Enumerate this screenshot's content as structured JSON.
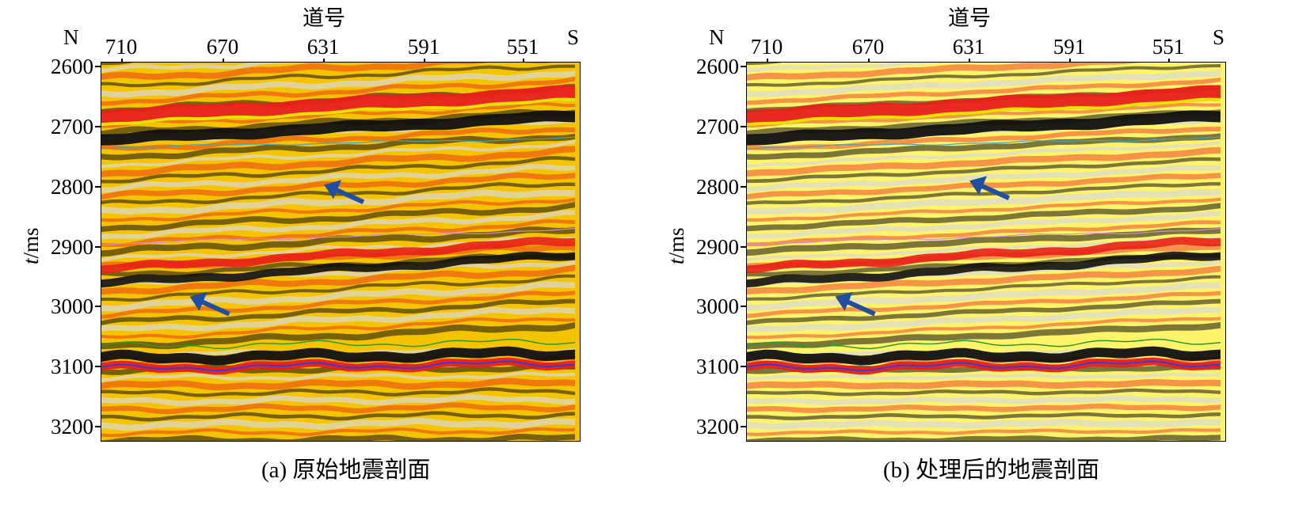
{
  "panels": [
    {
      "id": "a",
      "x_title": "道号",
      "left_dir": "N",
      "right_dir": "S",
      "x_ticks": [
        "710",
        "670",
        "631",
        "591",
        "551"
      ],
      "y_ticks": [
        "2600",
        "2700",
        "2800",
        "2900",
        "3000",
        "3100",
        "3200"
      ],
      "y_label_italic": "t",
      "y_label_rest": "/ms",
      "caption": "(a) 原始地震剖面",
      "arrow_count": 2
    },
    {
      "id": "b",
      "x_title": "道号",
      "left_dir": "N",
      "right_dir": "S",
      "x_ticks": [
        "710",
        "670",
        "631",
        "591",
        "551"
      ],
      "y_ticks": [
        "2600",
        "2700",
        "2800",
        "2900",
        "3000",
        "3100",
        "3200"
      ],
      "y_label_italic": "t",
      "y_label_rest": "/ms",
      "caption": "(b) 处理后的地震剖面",
      "arrow_count": 2
    }
  ],
  "colors": {
    "peak": "#e8201a",
    "trough": "#111111",
    "mid": "#f5c400",
    "low": "#fff36a",
    "arrow": "#1f4ea3"
  }
}
